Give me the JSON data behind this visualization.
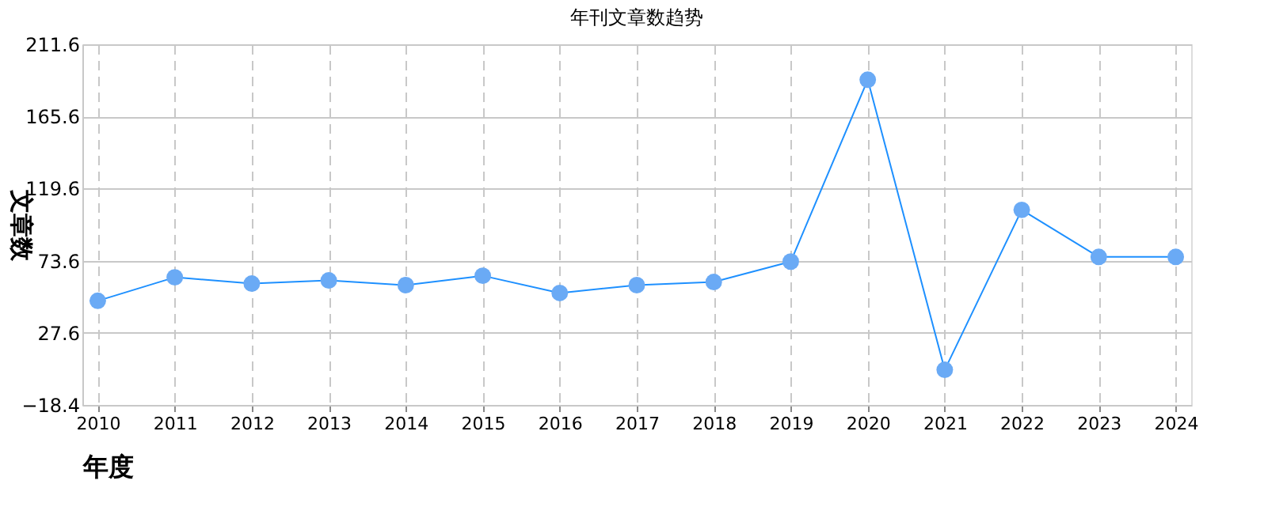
{
  "chart_data": {
    "type": "line",
    "title": "年刊文章数趋势",
    "xlabel": "年度",
    "ylabel": "文章数",
    "categories": [
      "2010",
      "2011",
      "2012",
      "2013",
      "2014",
      "2015",
      "2016",
      "2017",
      "2018",
      "2019",
      "2020",
      "2021",
      "2022",
      "2023",
      "2024"
    ],
    "series": [
      {
        "color": "#1e90ff",
        "values": [
          48,
          63,
          59,
          61,
          58,
          64,
          53,
          58,
          60,
          73,
          189,
          4,
          106,
          76,
          76
        ]
      }
    ],
    "ylim": [
      -18.4,
      211.6
    ],
    "yticks": [
      -18.4,
      27.6,
      73.6,
      119.6,
      165.6,
      211.6
    ],
    "grid": true,
    "marker": "circle",
    "line_style": "solid"
  }
}
